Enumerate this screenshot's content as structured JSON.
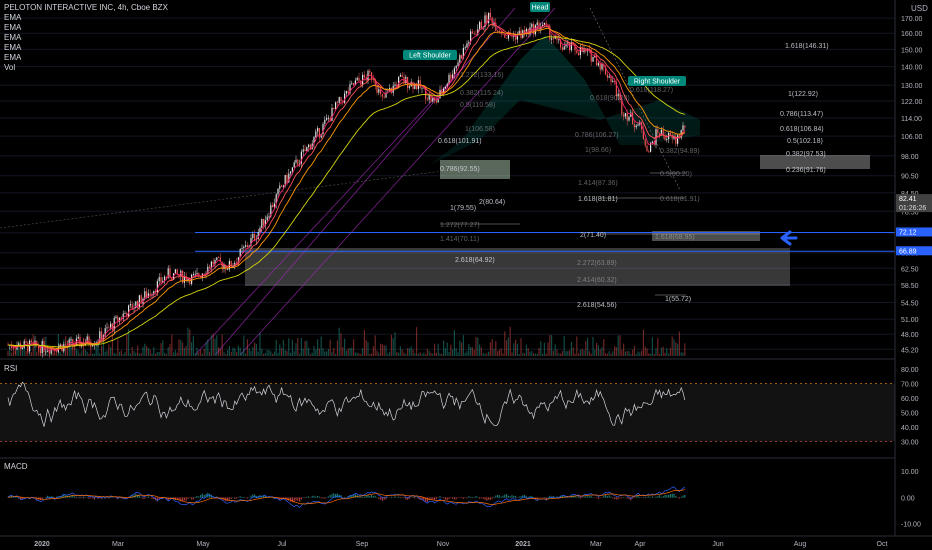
{
  "header": {
    "title": "PELOTON INTERACTIVE INC, 4h, Cboe BZX",
    "indicators": [
      "EMA",
      "EMA",
      "EMA",
      "EMA",
      "EMA",
      "Vol"
    ],
    "currency": "USD"
  },
  "panes": {
    "rsi_label": "RSI",
    "macd_label": "MACD"
  },
  "colors": {
    "up": "#e3e3e3",
    "down": "#ef5350",
    "ema_fast": "#e91e63",
    "ema_mid": "#ff9800",
    "ema_slow": "#d4d40a",
    "channel": "#9c27b0",
    "blue_line": "#2962ff",
    "pattern": "#00897b"
  },
  "chart_data": {
    "type": "candlestick",
    "x_axis_labels": [
      "2020",
      "Mar",
      "May",
      "Jul",
      "Sep",
      "Nov",
      "2021",
      "Mar",
      "Apr",
      "Jun",
      "Aug",
      "Oct"
    ],
    "price_axis": {
      "scale": "log",
      "ylim": [
        44,
        177
      ],
      "ticks": [
        170.0,
        160.0,
        150.0,
        140.0,
        130.0,
        122.0,
        114.0,
        106.0,
        98.0,
        90.5,
        84.5,
        78.5,
        72.0,
        66.5,
        62.5,
        58.5,
        54.5,
        51.0,
        48.0,
        45.2
      ]
    },
    "price_tags": [
      {
        "value": "82.41",
        "sub": "01:26:26"
      },
      {
        "value": "72.12"
      },
      {
        "value": "66.89"
      }
    ],
    "price_path": [
      [
        0,
        46
      ],
      [
        5,
        45.5
      ],
      [
        10,
        47
      ],
      [
        13,
        52
      ],
      [
        16,
        57
      ],
      [
        18,
        61
      ],
      [
        21,
        60
      ],
      [
        23,
        64
      ],
      [
        25,
        63
      ],
      [
        28,
        72
      ],
      [
        31,
        88
      ],
      [
        33,
        98
      ],
      [
        35,
        108
      ],
      [
        37,
        120
      ],
      [
        39,
        131
      ],
      [
        41,
        136
      ],
      [
        42,
        122
      ],
      [
        44,
        133
      ],
      [
        46,
        130
      ],
      [
        48,
        121
      ],
      [
        50,
        138
      ],
      [
        52,
        158
      ],
      [
        54,
        171
      ],
      [
        56,
        158
      ],
      [
        58,
        160
      ],
      [
        60,
        166
      ],
      [
        62,
        152
      ],
      [
        64,
        150
      ],
      [
        66,
        145
      ],
      [
        68,
        132
      ],
      [
        69,
        118
      ],
      [
        71,
        110
      ],
      [
        72,
        100
      ],
      [
        73,
        108
      ],
      [
        75,
        104
      ],
      [
        77,
        117
      ],
      [
        79,
        120
      ],
      [
        80,
        108
      ],
      [
        82,
        112
      ],
      [
        84,
        104
      ],
      [
        85,
        94
      ],
      [
        86.5,
        82.4
      ]
    ],
    "annotations": [
      {
        "label": "Left Shoulder",
        "price": 133
      },
      {
        "label": "Head",
        "price": 175
      },
      {
        "label": "Right Shoulder",
        "price": 125
      }
    ],
    "fib_labels": [
      "1.618(146.31)",
      "1(122.92)",
      "0.786(113.47)",
      "0.618(106.84)",
      "0.5(102.18)",
      "0.382(97.53)",
      "0.236(91.76)",
      "0.618(101.91)",
      "0.786(92.55)",
      "1.618(81.81)",
      "2(80.64)",
      "1(79.55)",
      "2(71.40)",
      "2.618(64.92)",
      "2.618(54.56)",
      "1(55.72)",
      "1.272(133.16)",
      "0.382(115.24)",
      "0.5(110.58)",
      "1(106.58)",
      "1(98.66)",
      "0.786(106.27)",
      "0.382(94.89)",
      "0.5(90.20)",
      "1.414(87.36)",
      "0.618(81.91)",
      "1.272(77.27)",
      "1.414(70.11)",
      "1.618(68.95)",
      "2.272(63.89)",
      "2.414(60.32)",
      "0.618(90.20)",
      "0.618(118.27)"
    ],
    "rsi": {
      "ticks": [
        80.0,
        70.0,
        60.0,
        50.0,
        40.0,
        30.0
      ],
      "ylim": [
        20,
        85
      ],
      "overbought": 70,
      "oversold": 30
    },
    "macd": {
      "ticks": [
        10.0,
        0.0,
        -10.0
      ],
      "ylim": [
        -14,
        12
      ]
    }
  }
}
